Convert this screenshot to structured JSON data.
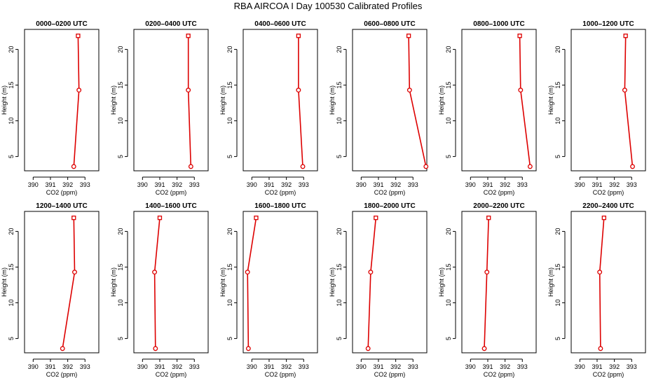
{
  "figure": {
    "title": "RBA AIRCOA I  Day 100530  Calibrated Profiles"
  },
  "style": {
    "line_color": "#dd0000",
    "marker_color": "#dd0000",
    "axis_color": "#000000"
  },
  "chart_data": [
    {
      "type": "line",
      "title": "0000–0200 UTC",
      "xlabel": "CO2 (ppm)",
      "ylabel": "Height (m)",
      "xlim": [
        389.5,
        393.8
      ],
      "ylim": [
        3,
        22.8
      ],
      "xticks": [
        390,
        391,
        392,
        393
      ],
      "yticks": [
        5,
        10,
        15,
        20
      ],
      "series": [
        {
          "x": [
            392.35,
            392.65,
            392.6
          ],
          "y": [
            3.6,
            14.3,
            21.9
          ]
        }
      ]
    },
    {
      "type": "line",
      "title": "0200–0400 UTC",
      "xlabel": "CO2 (ppm)",
      "ylabel": "Height (m)",
      "xlim": [
        389.5,
        393.8
      ],
      "ylim": [
        3,
        22.8
      ],
      "xticks": [
        390,
        391,
        392,
        393
      ],
      "yticks": [
        5,
        10,
        15,
        20
      ],
      "series": [
        {
          "x": [
            392.8,
            392.65,
            392.65
          ],
          "y": [
            3.6,
            14.3,
            21.9
          ]
        }
      ]
    },
    {
      "type": "line",
      "title": "0400–0600 UTC",
      "xlabel": "CO2 (ppm)",
      "ylabel": "Height (m)",
      "xlim": [
        389.5,
        393.8
      ],
      "ylim": [
        3,
        22.8
      ],
      "xticks": [
        390,
        391,
        392,
        393
      ],
      "yticks": [
        5,
        10,
        15,
        20
      ],
      "series": [
        {
          "x": [
            392.95,
            392.7,
            392.7
          ],
          "y": [
            3.6,
            14.3,
            21.9
          ]
        }
      ]
    },
    {
      "type": "line",
      "title": "0600–0800 UTC",
      "xlabel": "CO2 (ppm)",
      "ylabel": "Height (m)",
      "xlim": [
        389.5,
        393.8
      ],
      "ylim": [
        3,
        22.8
      ],
      "xticks": [
        390,
        391,
        392,
        393
      ],
      "yticks": [
        5,
        10,
        15,
        20
      ],
      "series": [
        {
          "x": [
            393.75,
            392.8,
            392.75
          ],
          "y": [
            3.6,
            14.3,
            21.9
          ]
        }
      ]
    },
    {
      "type": "line",
      "title": "0800–1000 UTC",
      "xlabel": "CO2 (ppm)",
      "ylabel": "Height (m)",
      "xlim": [
        389.5,
        393.8
      ],
      "ylim": [
        3,
        22.8
      ],
      "xticks": [
        390,
        391,
        392,
        393
      ],
      "yticks": [
        5,
        10,
        15,
        20
      ],
      "series": [
        {
          "x": [
            393.45,
            392.9,
            392.85
          ],
          "y": [
            3.6,
            14.3,
            21.9
          ]
        }
      ]
    },
    {
      "type": "line",
      "title": "1000–1200 UTC",
      "xlabel": "CO2 (ppm)",
      "ylabel": "Height (m)",
      "xlim": [
        389.5,
        393.8
      ],
      "ylim": [
        3,
        22.8
      ],
      "xticks": [
        390,
        391,
        392,
        393
      ],
      "yticks": [
        5,
        10,
        15,
        20
      ],
      "series": [
        {
          "x": [
            393.05,
            392.6,
            392.65
          ],
          "y": [
            3.6,
            14.3,
            21.9
          ]
        }
      ]
    },
    {
      "type": "line",
      "title": "1200–1400 UTC",
      "xlabel": "CO2 (ppm)",
      "ylabel": "Height (m)",
      "xlim": [
        389.5,
        393.8
      ],
      "ylim": [
        3,
        22.8
      ],
      "xticks": [
        390,
        391,
        392,
        393
      ],
      "yticks": [
        5,
        10,
        15,
        20
      ],
      "series": [
        {
          "x": [
            391.7,
            392.4,
            392.35
          ],
          "y": [
            3.6,
            14.3,
            21.9
          ]
        }
      ]
    },
    {
      "type": "line",
      "title": "1400–1600 UTC",
      "xlabel": "CO2 (ppm)",
      "ylabel": "Height (m)",
      "xlim": [
        389.5,
        393.8
      ],
      "ylim": [
        3,
        22.8
      ],
      "xticks": [
        390,
        391,
        392,
        393
      ],
      "yticks": [
        5,
        10,
        15,
        20
      ],
      "series": [
        {
          "x": [
            390.75,
            390.7,
            391.0
          ],
          "y": [
            3.6,
            14.3,
            21.9
          ]
        }
      ]
    },
    {
      "type": "line",
      "title": "1600–1800 UTC",
      "xlabel": "CO2 (ppm)",
      "ylabel": "Height (m)",
      "xlim": [
        389.5,
        393.8
      ],
      "ylim": [
        3,
        22.8
      ],
      "xticks": [
        390,
        391,
        392,
        393
      ],
      "yticks": [
        5,
        10,
        15,
        20
      ],
      "series": [
        {
          "x": [
            389.8,
            389.75,
            390.25
          ],
          "y": [
            3.6,
            14.3,
            21.9
          ]
        }
      ]
    },
    {
      "type": "line",
      "title": "1800–2000 UTC",
      "xlabel": "CO2 (ppm)",
      "ylabel": "Height (m)",
      "xlim": [
        389.5,
        393.8
      ],
      "ylim": [
        3,
        22.8
      ],
      "xticks": [
        390,
        391,
        392,
        393
      ],
      "yticks": [
        5,
        10,
        15,
        20
      ],
      "series": [
        {
          "x": [
            390.4,
            390.55,
            390.85
          ],
          "y": [
            3.6,
            14.3,
            21.9
          ]
        }
      ]
    },
    {
      "type": "line",
      "title": "2000–2200 UTC",
      "xlabel": "CO2 (ppm)",
      "ylabel": "Height (m)",
      "xlim": [
        389.5,
        393.8
      ],
      "ylim": [
        3,
        22.8
      ],
      "xticks": [
        390,
        391,
        392,
        393
      ],
      "yticks": [
        5,
        10,
        15,
        20
      ],
      "series": [
        {
          "x": [
            390.8,
            390.95,
            391.05
          ],
          "y": [
            3.6,
            14.3,
            21.9
          ]
        }
      ]
    },
    {
      "type": "line",
      "title": "2200–2400 UTC",
      "xlabel": "CO2 (ppm)",
      "ylabel": "Height (m)",
      "xlim": [
        389.5,
        393.8
      ],
      "ylim": [
        3,
        22.8
      ],
      "xticks": [
        390,
        391,
        392,
        393
      ],
      "yticks": [
        5,
        10,
        15,
        20
      ],
      "series": [
        {
          "x": [
            391.2,
            391.15,
            391.4
          ],
          "y": [
            3.6,
            14.3,
            21.9
          ]
        }
      ]
    }
  ]
}
